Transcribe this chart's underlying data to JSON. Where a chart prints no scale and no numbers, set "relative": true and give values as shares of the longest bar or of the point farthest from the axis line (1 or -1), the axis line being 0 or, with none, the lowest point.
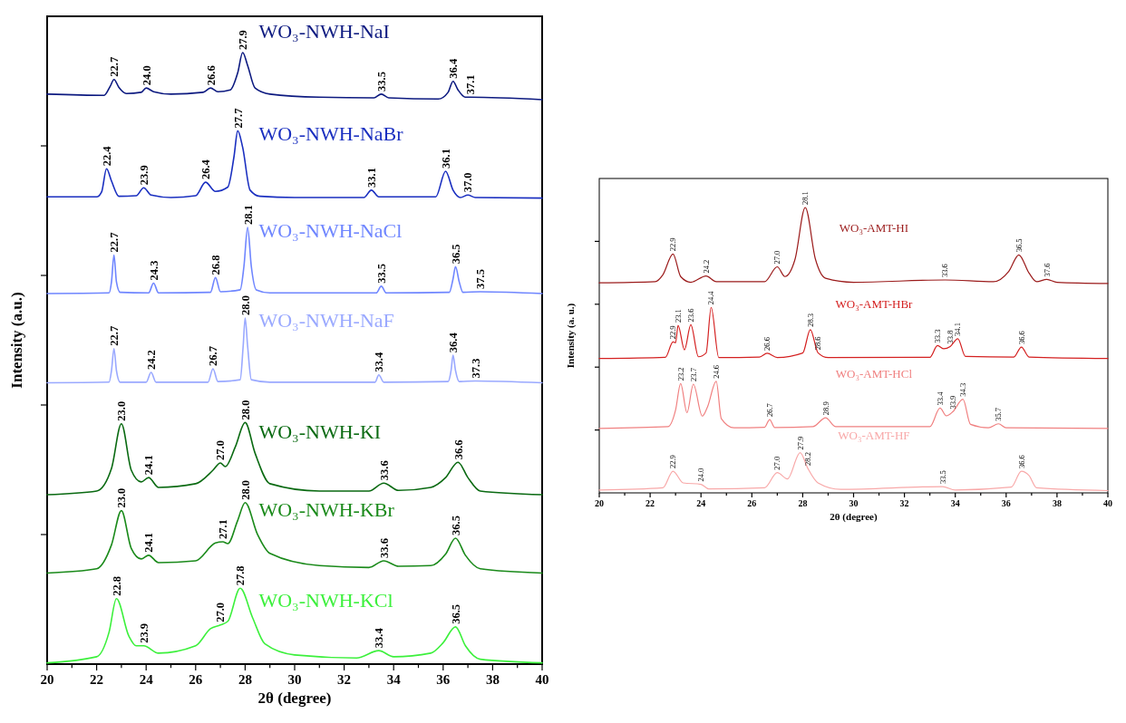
{
  "chart_data": [
    {
      "type": "line",
      "relative": true,
      "xlabel": "2θ (degree)",
      "ylabel": "Intensity (a.u.)",
      "xlim": [
        20,
        40
      ],
      "xticks": [
        20,
        {
          "value": 21,
          "label": null
        },
        22,
        {
          "value": 23,
          "label": null
        },
        24,
        {
          "value": 25,
          "label": null
        },
        26,
        {
          "value": 27,
          "label": null
        },
        28,
        {
          "value": 29,
          "label": null
        },
        30,
        {
          "value": 31,
          "label": null
        },
        32,
        {
          "value": 33,
          "label": null
        },
        34,
        {
          "value": 35,
          "label": null
        },
        36,
        {
          "value": 37,
          "label": null
        },
        38,
        {
          "value": 39,
          "label": null
        },
        40
      ],
      "series": [
        {
          "name": "WO₃-NWH-NaI",
          "color": "#0d1a80",
          "x": [
            20,
            22.3,
            22.55,
            22.7,
            22.9,
            23.2,
            23.8,
            24.0,
            24.3,
            25,
            26.3,
            26.6,
            26.9,
            27.4,
            27.7,
            27.9,
            28.1,
            28.4,
            29,
            31,
            33.2,
            33.5,
            33.8,
            35.8,
            36.2,
            36.4,
            36.6,
            36.9,
            37.1,
            40
          ],
          "values": [
            0.932,
            0.93,
            0.945,
            0.956,
            0.943,
            0.933,
            0.935,
            0.942,
            0.936,
            0.932,
            0.935,
            0.942,
            0.936,
            0.939,
            0.967,
            1,
            0.979,
            0.942,
            0.932,
            0.927,
            0.926,
            0.932,
            0.926,
            0.924,
            0.935,
            0.953,
            0.939,
            0.927,
            0.927,
            0.923
          ]
        },
        {
          "name": "WO₃-NWH-NaBr",
          "color": "#1a2fc0",
          "x": [
            20,
            22.0,
            22.2,
            22.4,
            22.6,
            22.9,
            23.6,
            23.9,
            24.2,
            25,
            26.0,
            26.4,
            26.8,
            27.3,
            27.55,
            27.7,
            27.9,
            28.2,
            28.6,
            30,
            32.8,
            33.1,
            33.4,
            35.7,
            36.1,
            36.4,
            36.7,
            37.0,
            37.3,
            40
          ],
          "values": [
            0.764,
            0.764,
            0.772,
            0.81,
            0.79,
            0.765,
            0.766,
            0.779,
            0.767,
            0.763,
            0.766,
            0.788,
            0.773,
            0.78,
            0.83,
            0.872,
            0.845,
            0.775,
            0.765,
            0.763,
            0.763,
            0.775,
            0.764,
            0.764,
            0.806,
            0.775,
            0.763,
            0.767,
            0.763,
            0.762
          ]
        },
        {
          "name": "WO₃-NWH-NaCl",
          "color": "#6f86ff",
          "x": [
            20,
            22.5,
            22.6,
            22.7,
            22.8,
            22.95,
            24.1,
            24.3,
            24.5,
            26.6,
            26.8,
            27.0,
            27.8,
            27.95,
            28.1,
            28.25,
            28.45,
            29,
            33.3,
            33.5,
            33.7,
            36.25,
            36.4,
            36.5,
            36.65,
            36.8,
            37.5,
            40
          ],
          "values": [
            0.606,
            0.607,
            0.625,
            0.669,
            0.625,
            0.608,
            0.607,
            0.623,
            0.607,
            0.608,
            0.632,
            0.609,
            0.612,
            0.65,
            0.714,
            0.65,
            0.612,
            0.607,
            0.607,
            0.618,
            0.607,
            0.608,
            0.63,
            0.65,
            0.625,
            0.608,
            0.609,
            0.606
          ]
        },
        {
          "name": "WO₃-NWH-NaF",
          "color": "#9aa9ff",
          "x": [
            20,
            22.5,
            22.6,
            22.7,
            22.8,
            22.95,
            24.0,
            24.2,
            24.4,
            26.5,
            26.7,
            26.9,
            27.8,
            27.92,
            28.0,
            28.1,
            28.25,
            29,
            33.25,
            33.4,
            33.6,
            36.2,
            36.32,
            36.4,
            36.5,
            36.65,
            37.3,
            40
          ],
          "values": [
            0.46,
            0.461,
            0.48,
            0.516,
            0.48,
            0.461,
            0.461,
            0.477,
            0.461,
            0.461,
            0.483,
            0.462,
            0.465,
            0.52,
            0.566,
            0.52,
            0.465,
            0.461,
            0.461,
            0.473,
            0.461,
            0.462,
            0.48,
            0.505,
            0.48,
            0.462,
            0.463,
            0.46
          ]
        },
        {
          "name": "WO₃-NWH-KI",
          "color": "#0a6a12",
          "x": [
            20,
            22,
            22.6,
            23.0,
            23.4,
            23.8,
            24.1,
            24.5,
            26,
            26.7,
            27.0,
            27.2,
            27.6,
            28.0,
            28.4,
            29,
            31,
            33,
            33.6,
            34.2,
            35.5,
            36.1,
            36.6,
            37.0,
            37.5,
            40
          ],
          "values": [
            0.277,
            0.283,
            0.32,
            0.393,
            0.317,
            0.298,
            0.305,
            0.289,
            0.295,
            0.317,
            0.329,
            0.323,
            0.355,
            0.395,
            0.345,
            0.295,
            0.283,
            0.283,
            0.296,
            0.284,
            0.289,
            0.305,
            0.33,
            0.305,
            0.283,
            0.277
          ]
        },
        {
          "name": "WO₃-NWH-KBr",
          "color": "#1a8a1a",
          "x": [
            20,
            22,
            22.6,
            23.0,
            23.4,
            23.8,
            24.1,
            24.5,
            26,
            26.8,
            27.1,
            27.3,
            27.7,
            28.0,
            28.5,
            29,
            31,
            33,
            33.6,
            34.2,
            35.5,
            36.1,
            36.5,
            36.9,
            37.5,
            40
          ],
          "values": [
            0.149,
            0.156,
            0.195,
            0.251,
            0.189,
            0.172,
            0.178,
            0.166,
            0.169,
            0.198,
            0.2,
            0.197,
            0.235,
            0.264,
            0.212,
            0.181,
            0.161,
            0.158,
            0.169,
            0.16,
            0.161,
            0.18,
            0.206,
            0.178,
            0.156,
            0.149
          ]
        },
        {
          "name": "WO₃-NWH-KCl",
          "color": "#3cf03c",
          "x": [
            20,
            22,
            22.5,
            22.8,
            23.3,
            23.6,
            23.9,
            24.5,
            26,
            26.6,
            27.0,
            27.3,
            27.8,
            28.3,
            28.8,
            30,
            32.5,
            33.4,
            34.0,
            35.5,
            36.0,
            36.5,
            36.9,
            37.5,
            40
          ],
          "values": [
            0.002,
            0.012,
            0.052,
            0.107,
            0.046,
            0.03,
            0.03,
            0.018,
            0.03,
            0.058,
            0.064,
            0.07,
            0.124,
            0.076,
            0.033,
            0.015,
            0.01,
            0.022,
            0.012,
            0.018,
            0.035,
            0.061,
            0.03,
            0.008,
            0.002
          ]
        }
      ],
      "annotations": [
        {
          "text": "22.7",
          "x": 22.7,
          "y": 0.956
        },
        {
          "text": "24.0",
          "x": 24.0,
          "y": 0.942
        },
        {
          "text": "26.6",
          "x": 26.6,
          "y": 0.942
        },
        {
          "text": "27.9",
          "x": 27.9,
          "y": 1
        },
        {
          "text": "33.5",
          "x": 33.5,
          "y": 0.932
        },
        {
          "text": "36.4",
          "x": 36.4,
          "y": 0.953
        },
        {
          "text": "37.1",
          "x": 37.1,
          "y": 0.927
        },
        {
          "text": "22.4",
          "x": 22.4,
          "y": 0.81
        },
        {
          "text": "23.9",
          "x": 23.9,
          "y": 0.779
        },
        {
          "text": "26.4",
          "x": 26.4,
          "y": 0.788
        },
        {
          "text": "27.7",
          "x": 27.7,
          "y": 0.872
        },
        {
          "text": "33.1",
          "x": 33.1,
          "y": 0.775
        },
        {
          "text": "36.1",
          "x": 36.1,
          "y": 0.806
        },
        {
          "text": "37.0",
          "x": 37.0,
          "y": 0.767
        },
        {
          "text": "22.7",
          "x": 22.7,
          "y": 0.669
        },
        {
          "text": "24.3",
          "x": 24.3,
          "y": 0.623
        },
        {
          "text": "26.8",
          "x": 26.8,
          "y": 0.632
        },
        {
          "text": "28.1",
          "x": 28.1,
          "y": 0.714
        },
        {
          "text": "33.5",
          "x": 33.5,
          "y": 0.618
        },
        {
          "text": "36.5",
          "x": 36.5,
          "y": 0.65
        },
        {
          "text": "37.5",
          "x": 37.5,
          "y": 0.609
        },
        {
          "text": "22.7",
          "x": 22.7,
          "y": 0.516
        },
        {
          "text": "24.2",
          "x": 24.2,
          "y": 0.477
        },
        {
          "text": "26.7",
          "x": 26.7,
          "y": 0.483
        },
        {
          "text": "28.0",
          "x": 28.0,
          "y": 0.566
        },
        {
          "text": "33.4",
          "x": 33.4,
          "y": 0.473
        },
        {
          "text": "36.4",
          "x": 36.4,
          "y": 0.505
        },
        {
          "text": "37.3",
          "x": 37.3,
          "y": 0.463
        },
        {
          "text": "23.0",
          "x": 23.0,
          "y": 0.393
        },
        {
          "text": "24.1",
          "x": 24.1,
          "y": 0.305
        },
        {
          "text": "27.0",
          "x": 27.0,
          "y": 0.329
        },
        {
          "text": "28.0",
          "x": 28.0,
          "y": 0.395
        },
        {
          "text": "33.6",
          "x": 33.6,
          "y": 0.296
        },
        {
          "text": "36.6",
          "x": 36.6,
          "y": 0.33
        },
        {
          "text": "23.0",
          "x": 23.0,
          "y": 0.251
        },
        {
          "text": "24.1",
          "x": 24.1,
          "y": 0.178
        },
        {
          "text": "27.1",
          "x": 27.1,
          "y": 0.2
        },
        {
          "text": "28.0",
          "x": 28.0,
          "y": 0.264
        },
        {
          "text": "33.6",
          "x": 33.6,
          "y": 0.169
        },
        {
          "text": "36.5",
          "x": 36.5,
          "y": 0.206
        },
        {
          "text": "22.8",
          "x": 22.8,
          "y": 0.107
        },
        {
          "text": "23.9",
          "x": 23.9,
          "y": 0.03
        },
        {
          "text": "27.0",
          "x": 27.0,
          "y": 0.064
        },
        {
          "text": "27.8",
          "x": 27.8,
          "y": 0.124
        },
        {
          "text": "33.4",
          "x": 33.4,
          "y": 0.022
        },
        {
          "text": "36.5",
          "x": 36.5,
          "y": 0.061
        }
      ]
    },
    {
      "type": "line",
      "relative": true,
      "xlabel": "2θ (degree)",
      "ylabel": "Intensity (a. u.)",
      "xlim": [
        20,
        40
      ],
      "xticks": [
        20,
        {
          "value": 21,
          "label": null
        },
        22,
        {
          "value": 23,
          "label": null
        },
        24,
        {
          "value": 25,
          "label": null
        },
        26,
        {
          "value": 27,
          "label": null
        },
        28,
        {
          "value": 29,
          "label": null
        },
        30,
        {
          "value": 31,
          "label": null
        },
        32,
        {
          "value": 33,
          "label": null
        },
        34,
        {
          "value": 35,
          "label": null
        },
        36,
        {
          "value": 37,
          "label": null
        },
        38,
        {
          "value": 39,
          "label": null
        },
        40
      ],
      "series": [
        {
          "name": "WO₃-AMT-HI",
          "color": "#9b1b1b",
          "x": [
            20,
            22.2,
            22.5,
            22.9,
            23.2,
            23.6,
            24.2,
            24.6,
            26.5,
            27.0,
            27.3,
            27.7,
            28.1,
            28.5,
            28.9,
            30,
            33.6,
            35.5,
            36.1,
            36.5,
            36.9,
            37.2,
            37.6,
            38,
            40
          ],
          "values": [
            0.736,
            0.74,
            0.764,
            0.837,
            0.758,
            0.738,
            0.76,
            0.74,
            0.74,
            0.792,
            0.758,
            0.819,
            1,
            0.819,
            0.752,
            0.738,
            0.746,
            0.74,
            0.776,
            0.834,
            0.77,
            0.74,
            0.748,
            0.738,
            0.734
          ]
        },
        {
          "name": "WO₃-AMT-HBr",
          "color": "#d42020",
          "x": [
            20,
            22.6,
            22.9,
            23.0,
            23.1,
            23.35,
            23.6,
            23.9,
            24.2,
            24.4,
            24.7,
            26.3,
            26.6,
            27.0,
            28.0,
            28.3,
            28.6,
            29,
            33.0,
            33.3,
            33.55,
            33.8,
            34.1,
            34.4,
            36.3,
            36.6,
            36.9,
            40
          ],
          "values": [
            0.471,
            0.475,
            0.529,
            0.526,
            0.587,
            0.501,
            0.589,
            0.477,
            0.49,
            0.65,
            0.474,
            0.476,
            0.489,
            0.474,
            0.49,
            0.572,
            0.491,
            0.474,
            0.475,
            0.516,
            0.505,
            0.513,
            0.54,
            0.478,
            0.476,
            0.511,
            0.476,
            0.471
          ]
        },
        {
          "name": "WO₃-AMT-HCl",
          "color": "#f08080",
          "x": [
            20,
            22.7,
            23.0,
            23.2,
            23.45,
            23.7,
            24.05,
            24.25,
            24.6,
            24.8,
            25.3,
            26.5,
            26.7,
            26.9,
            28.4,
            28.9,
            29.3,
            33.0,
            33.4,
            33.65,
            33.9,
            34.3,
            34.6,
            35.3,
            35.7,
            36.0,
            40
          ],
          "values": [
            0.226,
            0.232,
            0.29,
            0.383,
            0.281,
            0.381,
            0.269,
            0.3,
            0.391,
            0.26,
            0.228,
            0.23,
            0.257,
            0.229,
            0.232,
            0.263,
            0.232,
            0.232,
            0.297,
            0.27,
            0.284,
            0.328,
            0.24,
            0.228,
            0.242,
            0.228,
            0.226
          ]
        },
        {
          "name": "WO₃-AMT-HF",
          "color": "#f8a8a8",
          "x": [
            20,
            22.5,
            22.9,
            23.3,
            24.0,
            24.3,
            26.5,
            27.0,
            27.4,
            27.9,
            28.2,
            28.6,
            29.5,
            33.5,
            34,
            36.2,
            36.6,
            36.9,
            37.2,
            40
          ],
          "values": [
            0.01,
            0.018,
            0.076,
            0.035,
            0.03,
            0.014,
            0.018,
            0.071,
            0.049,
            0.141,
            0.086,
            0.035,
            0.012,
            0.022,
            0.01,
            0.02,
            0.076,
            0.061,
            0.018,
            0.008
          ]
        }
      ],
      "annotations": [
        {
          "text": "22.9",
          "x": 22.9,
          "y": 0.837
        },
        {
          "text": "24.2",
          "x": 24.2,
          "y": 0.76
        },
        {
          "text": "27.0",
          "x": 27.0,
          "y": 0.792
        },
        {
          "text": "28.1",
          "x": 28.1,
          "y": 1
        },
        {
          "text": "33.6",
          "x": 33.6,
          "y": 0.746
        },
        {
          "text": "36.5",
          "x": 36.5,
          "y": 0.834
        },
        {
          "text": "37.6",
          "x": 37.6,
          "y": 0.748
        },
        {
          "text": "22.9",
          "x": 22.9,
          "y": 0.529
        },
        {
          "text": "23.1",
          "x": 23.1,
          "y": 0.587
        },
        {
          "text": "23.6",
          "x": 23.6,
          "y": 0.589
        },
        {
          "text": "24.4",
          "x": 24.4,
          "y": 0.65
        },
        {
          "text": "26.6",
          "x": 26.6,
          "y": 0.489
        },
        {
          "text": "28.3",
          "x": 28.3,
          "y": 0.572
        },
        {
          "text": "28.6",
          "x": 28.6,
          "y": 0.491
        },
        {
          "text": "33.3",
          "x": 33.3,
          "y": 0.516
        },
        {
          "text": "33.8",
          "x": 33.8,
          "y": 0.513
        },
        {
          "text": "34.1",
          "x": 34.1,
          "y": 0.54
        },
        {
          "text": "36.6",
          "x": 36.6,
          "y": 0.511
        },
        {
          "text": "23.2",
          "x": 23.2,
          "y": 0.383
        },
        {
          "text": "23.7",
          "x": 23.7,
          "y": 0.381
        },
        {
          "text": "24.6",
          "x": 24.6,
          "y": 0.391
        },
        {
          "text": "26.7",
          "x": 26.7,
          "y": 0.257
        },
        {
          "text": "28.9",
          "x": 28.9,
          "y": 0.263
        },
        {
          "text": "33.4",
          "x": 33.4,
          "y": 0.297
        },
        {
          "text": "33.9",
          "x": 33.9,
          "y": 0.284
        },
        {
          "text": "34.3",
          "x": 34.3,
          "y": 0.328
        },
        {
          "text": "35.7",
          "x": 35.7,
          "y": 0.242
        },
        {
          "text": "22.9",
          "x": 22.9,
          "y": 0.076
        },
        {
          "text": "24.0",
          "x": 24.0,
          "y": 0.03
        },
        {
          "text": "27.0",
          "x": 27.0,
          "y": 0.071
        },
        {
          "text": "27.9",
          "x": 27.9,
          "y": 0.141
        },
        {
          "text": "28.2",
          "x": 28.2,
          "y": 0.086
        },
        {
          "text": "33.5",
          "x": 33.5,
          "y": 0.022
        },
        {
          "text": "36.6",
          "x": 36.6,
          "y": 0.076
        }
      ]
    }
  ]
}
